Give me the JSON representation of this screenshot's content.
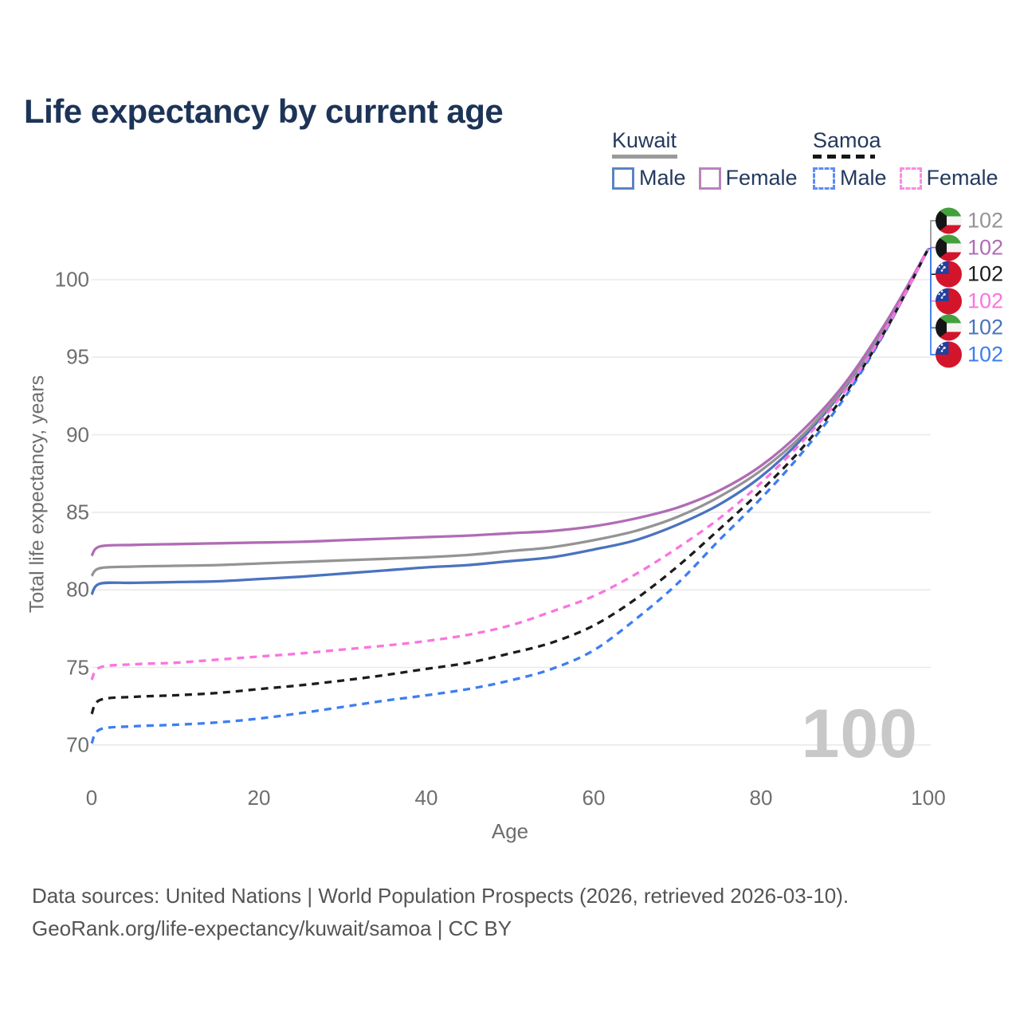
{
  "page": {
    "title": "Life expectancy by current age"
  },
  "legend": {
    "groups": [
      {
        "title": "Kuwait",
        "line_style": "solid",
        "rule_color": "#9a9a9a",
        "items": [
          {
            "label": "Male",
            "color": "#5b83c5",
            "dash": false
          },
          {
            "label": "Female",
            "color": "#bb82bd",
            "dash": false
          }
        ]
      },
      {
        "title": "Samoa",
        "line_style": "dashed",
        "rule_color": "#161616",
        "items": [
          {
            "label": "Male",
            "color": "#5b8df5",
            "dash": true
          },
          {
            "label": "Female",
            "color": "#fb8ae2",
            "dash": true
          }
        ]
      }
    ]
  },
  "chart_data": {
    "type": "line",
    "title": "Life expectancy by current age",
    "xlabel": "Age",
    "ylabel": "Total life expectancy, years",
    "age_counter": "100",
    "xlim": [
      0,
      100
    ],
    "ylim": [
      68.5,
      103.5
    ],
    "xticks": [
      0,
      20,
      40,
      60,
      80,
      100
    ],
    "yticks": [
      70,
      75,
      80,
      85,
      90,
      95,
      100
    ],
    "grid": "horizontal-only",
    "grid_color": "#eaeaea",
    "x": [
      0,
      1,
      5,
      10,
      15,
      20,
      25,
      30,
      35,
      40,
      45,
      50,
      55,
      60,
      65,
      70,
      75,
      80,
      85,
      90,
      95,
      100
    ],
    "series": [
      {
        "name": "Kuwait Male",
        "country": "Kuwait",
        "sex": "Male",
        "color": "#4a73bf",
        "dash": false,
        "values": [
          79.7,
          80.4,
          80.45,
          80.5,
          80.55,
          80.7,
          80.85,
          81.05,
          81.25,
          81.45,
          81.6,
          81.85,
          82.1,
          82.6,
          83.2,
          84.2,
          85.5,
          87.3,
          89.8,
          93.0,
          97.1,
          102
        ]
      },
      {
        "name": "Kuwait All",
        "country": "Kuwait",
        "sex": "All",
        "color": "#949494",
        "dash": false,
        "values": [
          80.9,
          81.4,
          81.5,
          81.55,
          81.6,
          81.7,
          81.8,
          81.9,
          82.0,
          82.1,
          82.25,
          82.5,
          82.75,
          83.2,
          83.8,
          84.7,
          86.0,
          87.7,
          90.0,
          93.1,
          97.2,
          102
        ]
      },
      {
        "name": "Kuwait Female",
        "country": "Kuwait",
        "sex": "Female",
        "color": "#b06cb5",
        "dash": false,
        "values": [
          82.2,
          82.8,
          82.9,
          82.95,
          83.0,
          83.05,
          83.1,
          83.2,
          83.3,
          83.4,
          83.5,
          83.65,
          83.8,
          84.1,
          84.6,
          85.3,
          86.4,
          88.0,
          90.3,
          93.3,
          97.3,
          102
        ]
      },
      {
        "name": "Samoa Male",
        "country": "Samoa",
        "sex": "Male",
        "color": "#3d7ef2",
        "dash": true,
        "values": [
          70.1,
          71.0,
          71.2,
          71.3,
          71.45,
          71.7,
          72.05,
          72.45,
          72.85,
          73.2,
          73.6,
          74.15,
          74.9,
          76.1,
          78.1,
          80.4,
          83.2,
          85.9,
          88.9,
          92.4,
          96.8,
          102
        ]
      },
      {
        "name": "Samoa All",
        "country": "Samoa",
        "sex": "All",
        "color": "#1c1c1c",
        "dash": true,
        "values": [
          72.0,
          72.9,
          73.1,
          73.2,
          73.35,
          73.6,
          73.85,
          74.15,
          74.5,
          74.9,
          75.3,
          75.9,
          76.6,
          77.7,
          79.4,
          81.5,
          83.9,
          86.4,
          89.2,
          92.6,
          96.85,
          102
        ]
      },
      {
        "name": "Samoa Female",
        "country": "Samoa",
        "sex": "Female",
        "color": "#fb74df",
        "dash": true,
        "values": [
          74.2,
          75.0,
          75.2,
          75.3,
          75.5,
          75.7,
          75.9,
          76.15,
          76.4,
          76.7,
          77.1,
          77.7,
          78.6,
          79.6,
          81.0,
          82.7,
          84.6,
          86.9,
          89.6,
          92.8,
          96.9,
          102
        ]
      }
    ],
    "end_callouts": [
      {
        "flag": "kuwait",
        "value": "102",
        "color": "#949494",
        "series": "Kuwait All"
      },
      {
        "flag": "kuwait",
        "value": "102",
        "color": "#b06cb5",
        "series": "Kuwait Female"
      },
      {
        "flag": "samoa",
        "value": "102",
        "color": "#1c1c1c",
        "series": "Samoa All"
      },
      {
        "flag": "samoa",
        "value": "102",
        "color": "#fb74df",
        "series": "Samoa Female"
      },
      {
        "flag": "kuwait",
        "value": "102",
        "color": "#4a73bf",
        "series": "Kuwait Male"
      },
      {
        "flag": "samoa",
        "value": "102",
        "color": "#3d7ef2",
        "series": "Samoa Male"
      }
    ],
    "legend_position": "top-right"
  },
  "footer": {
    "line1": "Data sources: United Nations | World Population Prospects (2026, retrieved 2026-03-10).",
    "line2": "GeoRank.org/life-expectancy/kuwait/samoa | CC BY"
  }
}
